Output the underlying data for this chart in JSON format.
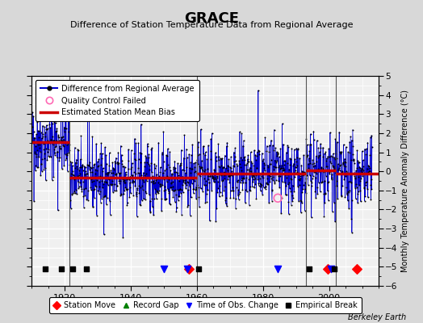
{
  "title": "GRACE",
  "subtitle": "Difference of Station Temperature Data from Regional Average",
  "ylabel": "Monthly Temperature Anomaly Difference (°C)",
  "ylim": [
    -6,
    5
  ],
  "xmin": 1910,
  "xmax": 2015,
  "bg_color": "#d8d8d8",
  "plot_bg_color": "#f0f0f0",
  "grid_color": "#ffffff",
  "line_color": "#0000cc",
  "bias_color": "#cc0000",
  "marker_color": "#000000",
  "qc_color": "#ff69b4",
  "vertical_lines": [
    1921.5,
    1960.0,
    1993.0,
    2002.0
  ],
  "bias_segments": [
    {
      "x": [
        1910,
        1921.5
      ],
      "y": [
        1.55,
        1.55
      ]
    },
    {
      "x": [
        1921.5,
        1960.0
      ],
      "y": [
        -0.35,
        -0.35
      ]
    },
    {
      "x": [
        1960.0,
        1993.0
      ],
      "y": [
        -0.12,
        -0.12
      ]
    },
    {
      "x": [
        1993.0,
        2002.0
      ],
      "y": [
        0.05,
        0.05
      ]
    },
    {
      "x": [
        2002.0,
        2015
      ],
      "y": [
        -0.1,
        -0.1
      ]
    }
  ],
  "qc_points": [
    [
      1984.5,
      -1.4
    ]
  ],
  "event_markers": {
    "station_move": [
      1957.5,
      1999.5,
      2008.5
    ],
    "record_gap": [],
    "obs_change": [
      1950.0,
      1957.0,
      1984.5,
      2000.5
    ],
    "empirical_break": [
      1914.0,
      1919.0,
      1922.5,
      1926.5,
      1960.5,
      1994.0,
      2001.5
    ]
  },
  "berkeley_earth_label": "Berkeley Earth",
  "seed": 42
}
